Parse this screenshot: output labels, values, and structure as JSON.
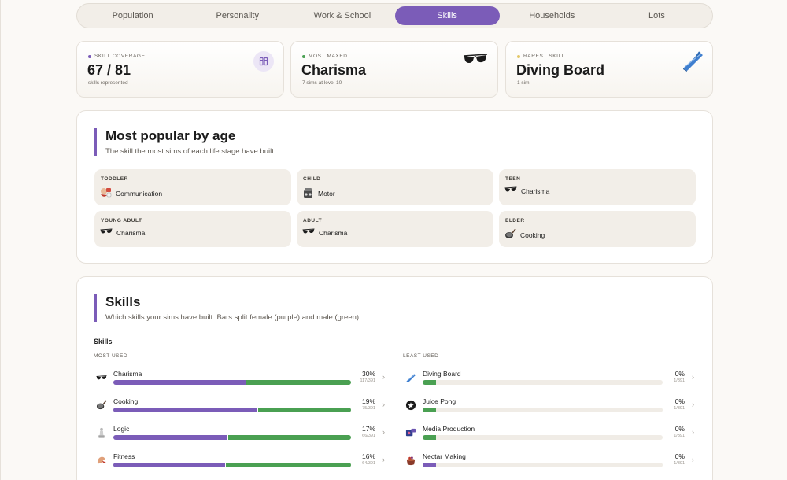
{
  "tabs": [
    "Population",
    "Personality",
    "Work & School",
    "Skills",
    "Households",
    "Lots"
  ],
  "active_tab": "Skills",
  "colors": {
    "accent": "#7b5cb8",
    "female": "#7b5cb8",
    "male": "#4aa052",
    "coverage_dot": "#7b5cb8",
    "maxed_dot": "#4aa052",
    "rarest_dot": "#e3c767"
  },
  "stats": {
    "coverage": {
      "kicker": "SKILL COVERAGE",
      "value": "67 / 81",
      "sub": "skills represented",
      "icon": "bookmark-icon"
    },
    "maxed": {
      "kicker": "MOST MAXED",
      "value": "Charisma",
      "sub": "7 sims at level 10",
      "icon": "sunglasses-icon"
    },
    "rarest": {
      "kicker": "RAREST SKILL",
      "value": "Diving Board",
      "sub": "1 sim",
      "icon": "diving-board-icon"
    }
  },
  "age_panel": {
    "title": "Most popular by age",
    "desc": "The skill the most sims of each life stage have built.",
    "cards": [
      {
        "label": "TODDLER",
        "skill": "Communication",
        "icon": "communication-icon"
      },
      {
        "label": "CHILD",
        "skill": "Motor",
        "icon": "motor-icon"
      },
      {
        "label": "TEEN",
        "skill": "Charisma",
        "icon": "sunglasses-icon"
      },
      {
        "label": "YOUNG ADULT",
        "skill": "Charisma",
        "icon": "sunglasses-icon"
      },
      {
        "label": "ADULT",
        "skill": "Charisma",
        "icon": "sunglasses-icon"
      },
      {
        "label": "ELDER",
        "skill": "Cooking",
        "icon": "pan-icon"
      }
    ]
  },
  "skills_panel": {
    "title": "Skills",
    "desc": "Which skills your sims have built. Bars split female (purple) and male (green).",
    "subheading": "Skills",
    "most_used_label": "MOST USED",
    "least_used_label": "LEAST USED",
    "most_used": [
      {
        "name": "Charisma",
        "pct": "30%",
        "count": "117/391",
        "length": 1.0,
        "female_share": 0.56,
        "icon": "sunglasses-icon"
      },
      {
        "name": "Cooking",
        "pct": "19%",
        "count": "75/391",
        "length": 1.0,
        "female_share": 0.61,
        "icon": "pan-icon"
      },
      {
        "name": "Logic",
        "pct": "17%",
        "count": "66/391",
        "length": 1.0,
        "female_share": 0.48,
        "icon": "chess-icon"
      },
      {
        "name": "Fitness",
        "pct": "16%",
        "count": "64/391",
        "length": 1.0,
        "female_share": 0.47,
        "icon": "fitness-icon"
      }
    ],
    "least_used": [
      {
        "name": "Diving Board",
        "pct": "0%",
        "count": "1/391",
        "length": 0.055,
        "female_share": 0.0,
        "icon": "diving-board-icon"
      },
      {
        "name": "Juice Pong",
        "pct": "0%",
        "count": "1/391",
        "length": 0.055,
        "female_share": 0.0,
        "icon": "juice-pong-icon"
      },
      {
        "name": "Media Production",
        "pct": "0%",
        "count": "1/391",
        "length": 0.055,
        "female_share": 0.0,
        "icon": "media-icon"
      },
      {
        "name": "Nectar Making",
        "pct": "0%",
        "count": "1/391",
        "length": 0.055,
        "female_share": 1.0,
        "icon": "nectar-icon"
      }
    ]
  }
}
